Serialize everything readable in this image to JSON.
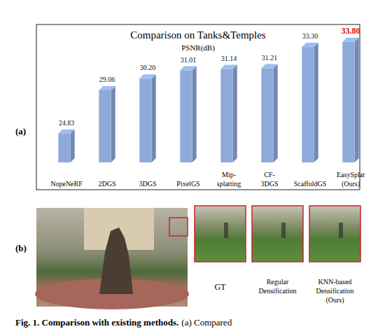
{
  "chart_data": {
    "type": "bar",
    "title": "Comparison on Tanks&Temples",
    "subtitle": "PSNR(dB)",
    "categories": [
      "NopeNeRF",
      "2DGS",
      "3DGS",
      "PixelGS",
      "Mip-\nsplatting",
      "CF-\n3DGS",
      "ScaffoldGS",
      "EasySplat\n(Ours)"
    ],
    "values": [
      24.83,
      29.06,
      30.2,
      31.01,
      31.14,
      31.21,
      33.3,
      33.8
    ],
    "value_labels": [
      "24.83",
      "29.06",
      "30.20",
      "31.01",
      "31.14",
      "31.21",
      "33.30",
      "33.80"
    ],
    "color": "#8eaadb",
    "ylim": [
      22,
      35.5
    ],
    "yticks": [],
    "data_labels": true,
    "tick_labels": "x"
  },
  "figure": {
    "panels": [
      "(a)",
      "(b)"
    ],
    "crops": [
      "GT",
      "Regular\nDensification",
      "KNN-based\nDensification\n(Ours)"
    ],
    "caption": {
      "label": "Fig. 1. Comparison with existing methods.",
      "text": "(a) Compared"
    }
  }
}
